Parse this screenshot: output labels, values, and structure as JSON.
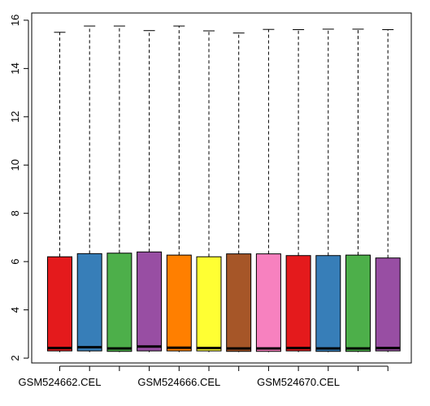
{
  "chart_data": {
    "type": "boxplot",
    "title": "",
    "xlabel": "",
    "ylabel": "",
    "ylim": [
      1.8,
      16.3
    ],
    "y_ticks": [
      2,
      4,
      6,
      8,
      10,
      12,
      14,
      16
    ],
    "categories": [
      "GSM524662.CEL",
      "",
      "",
      "",
      "GSM524666.CEL",
      "",
      "",
      "",
      "GSM524670.CEL",
      "",
      "",
      ""
    ],
    "boxes": [
      {
        "q1": 2.3,
        "median": 2.42,
        "q3": 6.2,
        "whisker_low": 2.25,
        "whisker_high": 15.5,
        "color": "#E41A1C"
      },
      {
        "q1": 2.3,
        "median": 2.45,
        "q3": 6.33,
        "whisker_low": 2.25,
        "whisker_high": 15.76,
        "color": "#377EB8"
      },
      {
        "q1": 2.28,
        "median": 2.4,
        "q3": 6.35,
        "whisker_low": 2.25,
        "whisker_high": 15.76,
        "color": "#4DAF4A"
      },
      {
        "q1": 2.3,
        "median": 2.48,
        "q3": 6.4,
        "whisker_low": 2.25,
        "whisker_high": 15.57,
        "color": "#984EA3"
      },
      {
        "q1": 2.3,
        "median": 2.43,
        "q3": 6.27,
        "whisker_low": 2.25,
        "whisker_high": 15.76,
        "color": "#FF7F00"
      },
      {
        "q1": 2.3,
        "median": 2.42,
        "q3": 6.2,
        "whisker_low": 2.25,
        "whisker_high": 15.56,
        "color": "#FFFF33"
      },
      {
        "q1": 2.28,
        "median": 2.4,
        "q3": 6.32,
        "whisker_low": 2.25,
        "whisker_high": 15.47,
        "color": "#A65628"
      },
      {
        "q1": 2.28,
        "median": 2.4,
        "q3": 6.32,
        "whisker_low": 2.25,
        "whisker_high": 15.62,
        "color": "#F781BF"
      },
      {
        "q1": 2.3,
        "median": 2.42,
        "q3": 6.25,
        "whisker_low": 2.25,
        "whisker_high": 15.61,
        "color": "#E41A1C"
      },
      {
        "q1": 2.28,
        "median": 2.4,
        "q3": 6.25,
        "whisker_low": 2.25,
        "whisker_high": 15.63,
        "color": "#377EB8"
      },
      {
        "q1": 2.28,
        "median": 2.4,
        "q3": 6.27,
        "whisker_low": 2.25,
        "whisker_high": 15.63,
        "color": "#4DAF4A"
      },
      {
        "q1": 2.3,
        "median": 2.42,
        "q3": 6.15,
        "whisker_low": 2.25,
        "whisker_high": 15.61,
        "color": "#984EA3"
      }
    ],
    "grid": false,
    "legend": "none"
  }
}
